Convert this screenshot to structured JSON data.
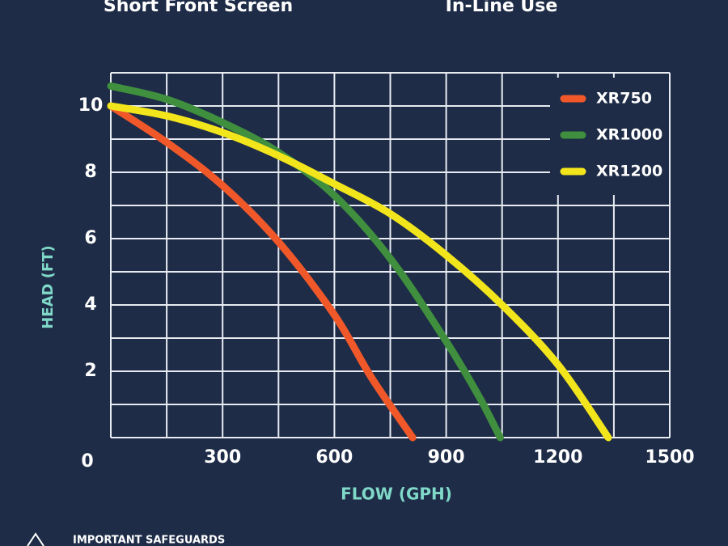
{
  "page": {
    "header_left": "Short Front Screen",
    "header_right": "In-Line Use",
    "footer": "IMPORTANT SAFEGUARDS"
  },
  "chart_data": {
    "type": "line",
    "x_label": "FLOW (GPH)",
    "y_label": "HEAD (FT)",
    "xlim": [
      0,
      1500
    ],
    "ylim": [
      0,
      11
    ],
    "xticks": [
      0,
      300,
      600,
      900,
      1200,
      1500
    ],
    "yticks": [
      2,
      4,
      6,
      8,
      10
    ],
    "xminor": [
      150,
      450,
      750,
      1050,
      1350
    ],
    "yminor": [
      1,
      3,
      5,
      7,
      9,
      11
    ],
    "grid": true,
    "legend": "top-right",
    "series": [
      {
        "name": "XR750",
        "color": "#f0582a",
        "x": [
          0,
          150,
          300,
          450,
          600,
          700,
          810
        ],
        "values": [
          10,
          8.9,
          7.6,
          5.9,
          3.7,
          1.8,
          0
        ]
      },
      {
        "name": "XR1000",
        "color": "#3f8f3e",
        "x": [
          0,
          150,
          300,
          450,
          600,
          750,
          900,
          990,
          1045
        ],
        "values": [
          10.6,
          10.2,
          9.5,
          8.6,
          7.3,
          5.4,
          2.9,
          1.2,
          0
        ]
      },
      {
        "name": "XR1200",
        "color": "#f3e51b",
        "x": [
          0,
          150,
          300,
          450,
          600,
          750,
          900,
          1050,
          1200,
          1335
        ],
        "values": [
          10,
          9.7,
          9.2,
          8.5,
          7.65,
          6.75,
          5.5,
          4.0,
          2.2,
          0
        ]
      }
    ]
  }
}
